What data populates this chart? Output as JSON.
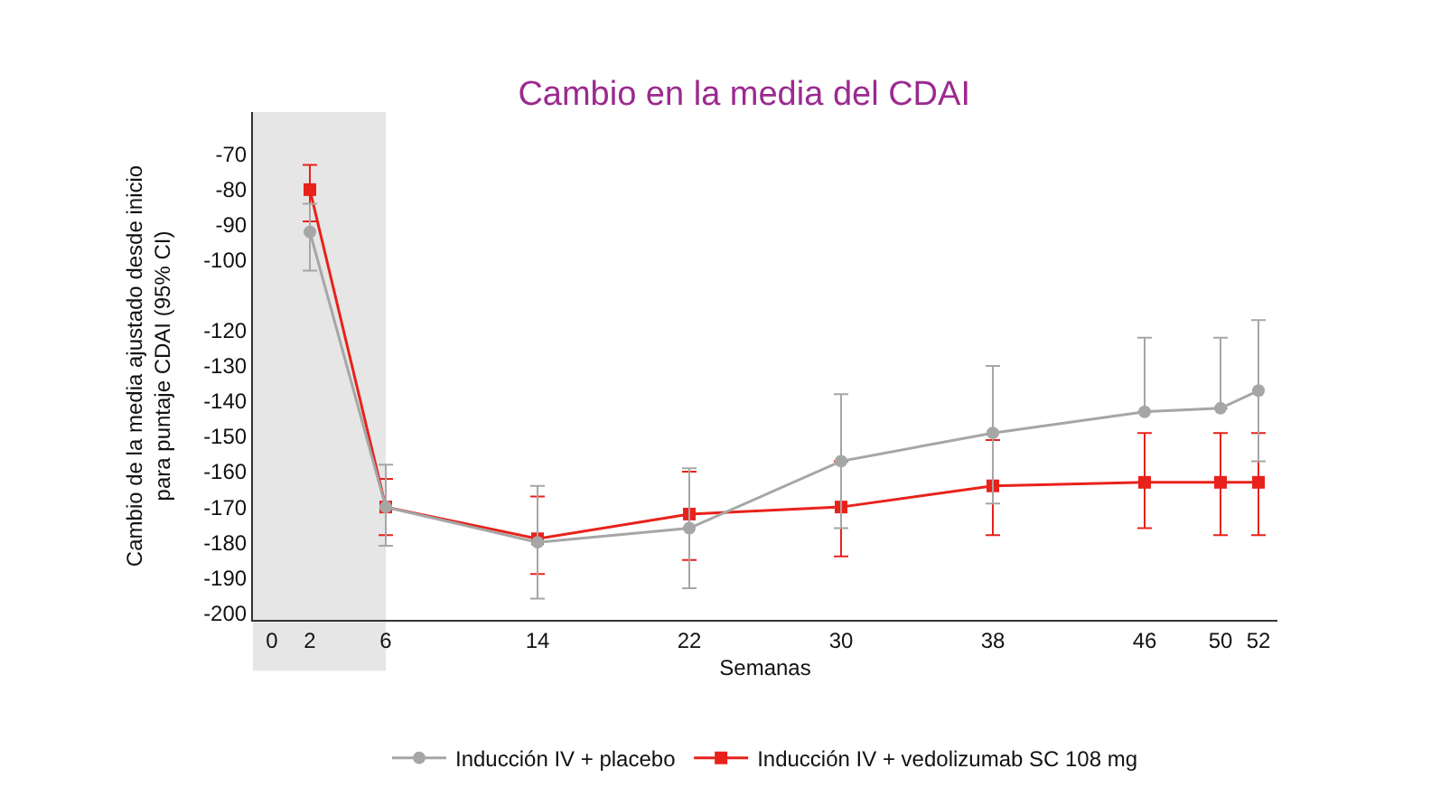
{
  "chart_data": {
    "type": "line",
    "title": "Cambio en la media del CDAI",
    "xlabel": "Semanas",
    "ylabel": "Cambio de la media ajustado desde inicio\npara puntaje CDAI (95% CI)",
    "x": [
      2,
      6,
      14,
      22,
      30,
      38,
      46,
      50,
      52
    ],
    "series": [
      {
        "name": "Inducción IV + placebo",
        "color": "#a6a6a6",
        "marker": "circle",
        "values": [
          -92,
          -170,
          -180,
          -176,
          -157,
          -149,
          -143,
          -142,
          -137
        ],
        "errors": [
          [
            -103,
            -84
          ],
          [
            -181,
            -158
          ],
          [
            -196,
            -164
          ],
          [
            -193,
            -159
          ],
          [
            -176,
            -138
          ],
          [
            -169,
            -130
          ],
          [
            -143,
            -122
          ],
          [
            -142,
            -122
          ],
          [
            -157,
            -117
          ]
        ]
      },
      {
        "name": "Inducción IV + vedolizumab SC 108 mg",
        "color": "#e8221b",
        "marker": "square",
        "values": [
          -80,
          -170,
          -179,
          -172,
          -170,
          -164,
          -163,
          -163,
          -163
        ],
        "errors": [
          [
            -89,
            -73
          ],
          [
            -178,
            -162
          ],
          [
            -189,
            -167
          ],
          [
            -185,
            -160
          ],
          [
            -184,
            -157
          ],
          [
            -178,
            -151
          ],
          [
            -176,
            -149
          ],
          [
            -178,
            -149
          ],
          [
            -178,
            -149
          ]
        ]
      }
    ],
    "xlim": [
      -1,
      53
    ],
    "xticks": [
      0,
      2,
      6,
      14,
      22,
      30,
      38,
      46,
      50,
      52
    ],
    "ylim": [
      -202,
      -58
    ],
    "yticks": [
      -70,
      -80,
      -90,
      -100,
      -120,
      -130,
      -140,
      -150,
      -160,
      -170,
      -180,
      -190,
      -200
    ],
    "bands": [
      {
        "axis": "x",
        "from": -1,
        "to": 6,
        "color": "#e6e6e6"
      }
    ],
    "grid": false,
    "legend": "bottom"
  }
}
